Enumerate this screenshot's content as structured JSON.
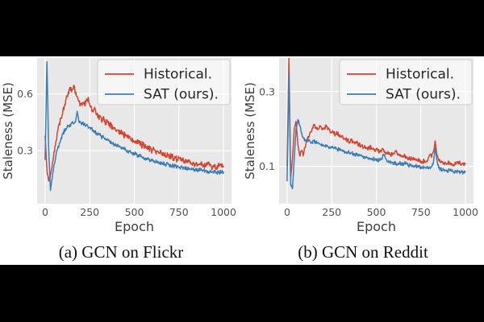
{
  "style": {
    "letterbox_color": "#000000",
    "band_background": "#ffffff",
    "plot_background": "#e8e8e8",
    "grid_color": "#ffffff",
    "tick_label_color": "#525252",
    "axis_label_color": "#3c3c3c",
    "legend_text_color": "#262626",
    "legend_background": "rgba(255,255,255,0.55)",
    "legend_border": "#cccccc",
    "historical_color": "#d5442f",
    "sat_color": "#3e7cb5"
  },
  "chart_data": [
    {
      "type": "line",
      "caption": "(a) GCN on Flickr",
      "xlabel": "Epoch",
      "ylabel": "Staleness (MSE)",
      "xlim": [
        -45,
        1045
      ],
      "ylim": [
        0.02,
        0.79
      ],
      "xticks": [
        0,
        250,
        500,
        750,
        1000
      ],
      "yticks": [
        0.3,
        0.6
      ],
      "ytick_labels": [
        "0.3",
        "0.6"
      ],
      "grid": true,
      "legend_position": "upper right",
      "x_start": 0,
      "x_step": 10,
      "series": [
        {
          "name": "Historical.",
          "color": "#d5442f",
          "noise": 0.016,
          "values": [
            0.38,
            0.2,
            0.14,
            0.175,
            0.228,
            0.295,
            0.345,
            0.4,
            0.445,
            0.47,
            0.515,
            0.545,
            0.59,
            0.61,
            0.635,
            0.62,
            0.645,
            0.6,
            0.585,
            0.56,
            0.545,
            0.555,
            0.54,
            0.565,
            0.575,
            0.545,
            0.525,
            0.505,
            0.52,
            0.49,
            0.475,
            0.482,
            0.46,
            0.468,
            0.445,
            0.452,
            0.43,
            0.438,
            0.415,
            0.422,
            0.405,
            0.41,
            0.39,
            0.398,
            0.38,
            0.388,
            0.37,
            0.374,
            0.358,
            0.362,
            0.348,
            0.352,
            0.338,
            0.342,
            0.328,
            0.333,
            0.318,
            0.322,
            0.308,
            0.312,
            0.3,
            0.306,
            0.292,
            0.297,
            0.288,
            0.291,
            0.278,
            0.285,
            0.272,
            0.276,
            0.268,
            0.271,
            0.258,
            0.263,
            0.252,
            0.259,
            0.248,
            0.253,
            0.242,
            0.249,
            0.238,
            0.243,
            0.232,
            0.239,
            0.228,
            0.233,
            0.225,
            0.231,
            0.222,
            0.227,
            0.218,
            0.225,
            0.229,
            0.219,
            0.212,
            0.217,
            0.208,
            0.217,
            0.223,
            0.214,
            0.221
          ]
        },
        {
          "name": "SAT (ours).",
          "color": "#3e7cb5",
          "noise": 0.011,
          "values": [
            0.25,
            0.77,
            0.3,
            0.09,
            0.16,
            0.225,
            0.27,
            0.31,
            0.34,
            0.368,
            0.388,
            0.408,
            0.418,
            0.432,
            0.438,
            0.446,
            0.442,
            0.452,
            0.508,
            0.45,
            0.448,
            0.442,
            0.438,
            0.433,
            0.428,
            0.423,
            0.418,
            0.408,
            0.398,
            0.393,
            0.385,
            0.379,
            0.372,
            0.367,
            0.36,
            0.357,
            0.35,
            0.347,
            0.34,
            0.333,
            0.33,
            0.326,
            0.32,
            0.317,
            0.31,
            0.307,
            0.3,
            0.297,
            0.29,
            0.287,
            0.285,
            0.281,
            0.276,
            0.271,
            0.27,
            0.266,
            0.26,
            0.259,
            0.255,
            0.251,
            0.248,
            0.247,
            0.242,
            0.241,
            0.238,
            0.237,
            0.232,
            0.231,
            0.228,
            0.227,
            0.222,
            0.221,
            0.22,
            0.219,
            0.215,
            0.213,
            0.21,
            0.211,
            0.208,
            0.206,
            0.205,
            0.203,
            0.2,
            0.201,
            0.2,
            0.199,
            0.197,
            0.197,
            0.195,
            0.195,
            0.193,
            0.192,
            0.19,
            0.191,
            0.189,
            0.188,
            0.187,
            0.186,
            0.185,
            0.186,
            0.19
          ]
        }
      ]
    },
    {
      "type": "line",
      "caption": "(b) GCN on Reddit",
      "xlabel": "Epoch",
      "ylabel": "Staleness (MSE)",
      "xlim": [
        -45,
        1045
      ],
      "ylim": [
        0.0,
        0.39
      ],
      "xticks": [
        0,
        250,
        500,
        750,
        1000
      ],
      "yticks": [
        0.1,
        0.3
      ],
      "ytick_labels": [
        "0.1",
        "0.3"
      ],
      "grid": true,
      "legend_position": "upper right",
      "x_start": 0,
      "x_step": 10,
      "series": [
        {
          "name": "Historical.",
          "color": "#d5442f",
          "noise": 0.006,
          "values": [
            0.1,
            0.39,
            0.07,
            0.12,
            0.2,
            0.22,
            0.16,
            0.13,
            0.142,
            0.128,
            0.15,
            0.172,
            0.18,
            0.192,
            0.2,
            0.21,
            0.204,
            0.198,
            0.202,
            0.206,
            0.198,
            0.202,
            0.21,
            0.2,
            0.194,
            0.19,
            0.192,
            0.184,
            0.19,
            0.184,
            0.18,
            0.182,
            0.174,
            0.17,
            0.172,
            0.164,
            0.17,
            0.164,
            0.16,
            0.162,
            0.16,
            0.154,
            0.156,
            0.15,
            0.152,
            0.15,
            0.147,
            0.152,
            0.147,
            0.144,
            0.146,
            0.141,
            0.14,
            0.142,
            0.146,
            0.137,
            0.135,
            0.133,
            0.132,
            0.13,
            0.133,
            0.14,
            0.13,
            0.128,
            0.126,
            0.125,
            0.128,
            0.124,
            0.122,
            0.12,
            0.121,
            0.118,
            0.117,
            0.116,
            0.115,
            0.114,
            0.113,
            0.116,
            0.112,
            0.12,
            0.13,
            0.124,
            0.14,
            0.168,
            0.13,
            0.115,
            0.11,
            0.113,
            0.11,
            0.108,
            0.107,
            0.111,
            0.108,
            0.106,
            0.105,
            0.109,
            0.112,
            0.108,
            0.105,
            0.104,
            0.105
          ]
        },
        {
          "name": "SAT (ours).",
          "color": "#3e7cb5",
          "noise": 0.005,
          "values": [
            0.06,
            0.35,
            0.05,
            0.04,
            0.12,
            0.2,
            0.225,
            0.21,
            0.19,
            0.176,
            0.17,
            0.168,
            0.171,
            0.167,
            0.165,
            0.168,
            0.164,
            0.162,
            0.16,
            0.158,
            0.156,
            0.155,
            0.153,
            0.152,
            0.15,
            0.15,
            0.148,
            0.147,
            0.146,
            0.145,
            0.144,
            0.142,
            0.14,
            0.139,
            0.138,
            0.136,
            0.135,
            0.134,
            0.132,
            0.13,
            0.13,
            0.128,
            0.127,
            0.126,
            0.125,
            0.124,
            0.122,
            0.121,
            0.12,
            0.119,
            0.118,
            0.117,
            0.116,
            0.118,
            0.13,
            0.122,
            0.112,
            0.11,
            0.112,
            0.11,
            0.108,
            0.107,
            0.106,
            0.108,
            0.106,
            0.105,
            0.112,
            0.106,
            0.103,
            0.102,
            0.101,
            0.1,
            0.1,
            0.099,
            0.098,
            0.097,
            0.096,
            0.098,
            0.096,
            0.095,
            0.097,
            0.1,
            0.11,
            0.15,
            0.115,
            0.095,
            0.092,
            0.09,
            0.09,
            0.089,
            0.088,
            0.09,
            0.088,
            0.087,
            0.086,
            0.088,
            0.086,
            0.085,
            0.084,
            0.083,
            0.085
          ]
        }
      ]
    }
  ]
}
